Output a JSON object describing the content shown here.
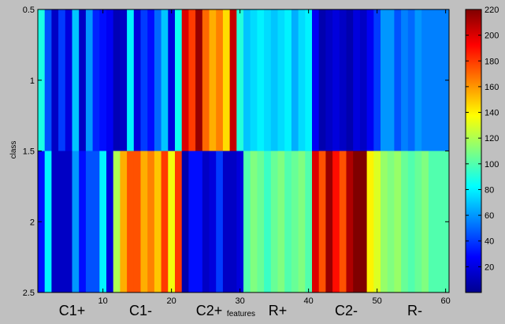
{
  "chart_data": {
    "type": "heatmap",
    "colormap": "jet",
    "xlabel": "features",
    "ylabel": "class",
    "xlim": [
      0.5,
      60.5
    ],
    "ylim": [
      0.5,
      2.5
    ],
    "x_ticks": [
      "10",
      "20",
      "30",
      "40",
      "50",
      "60"
    ],
    "y_ticks": [
      "0.5",
      "1",
      "1.5",
      "2",
      "2.5"
    ],
    "colorbar": {
      "min": 0,
      "max": 220,
      "ticks": [
        "20",
        "40",
        "60",
        "80",
        "100",
        "120",
        "140",
        "160",
        "180",
        "200",
        "220"
      ]
    },
    "group_labels": [
      {
        "label": "C1+",
        "center_feature": 5.5
      },
      {
        "label": "C1-",
        "center_feature": 15.5
      },
      {
        "label": "C2+",
        "center_feature": 25.5
      },
      {
        "label": "R+",
        "center_feature": 35.5
      },
      {
        "label": "C2-",
        "center_feature": 45.5
      },
      {
        "label": "R-",
        "center_feature": 55.5
      }
    ],
    "rows": [
      {
        "class": 1,
        "values": [
          88,
          45,
          15,
          40,
          20,
          70,
          15,
          60,
          35,
          30,
          25,
          12,
          15,
          80,
          20,
          40,
          30,
          50,
          70,
          20,
          85,
          200,
          180,
          215,
          170,
          155,
          165,
          145,
          205,
          90,
          70,
          75,
          80,
          75,
          70,
          75,
          80,
          65,
          75,
          80,
          25,
          10,
          15,
          20,
          15,
          10,
          20,
          15,
          25,
          40,
          60,
          60,
          45,
          55,
          50,
          60,
          55,
          55,
          55,
          55
        ]
      },
      {
        "class": 2,
        "values": [
          30,
          80,
          15,
          15,
          15,
          60,
          30,
          45,
          45,
          80,
          20,
          120,
          155,
          175,
          175,
          155,
          165,
          150,
          180,
          135,
          180,
          10,
          30,
          30,
          15,
          20,
          40,
          15,
          15,
          20,
          100,
          110,
          105,
          95,
          105,
          110,
          100,
          105,
          110,
          100,
          200,
          175,
          215,
          190,
          175,
          210,
          220,
          220,
          140,
          130,
          115,
          110,
          115,
          105,
          100,
          105,
          110,
          100,
          100,
          100
        ]
      }
    ]
  }
}
